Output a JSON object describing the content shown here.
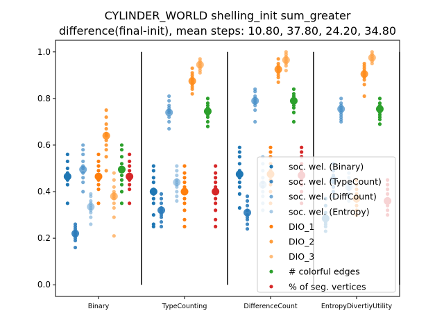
{
  "chart_data": {
    "type": "scatter",
    "title": "CYLINDER_WORLD shelling_init sum_greater",
    "subtitle": "difference(final-init), mean steps: 10.80, 37.80, 24.20, 34.80",
    "xlabel": "",
    "ylabel": "",
    "ylim": [
      -0.05,
      1.05
    ],
    "yticks": [
      "0.0",
      "0.2",
      "0.4",
      "0.6",
      "0.8",
      "1.0"
    ],
    "categories": [
      "Binary",
      "TypeCounting",
      "DifferenceCount",
      "EntropyDivertiyUtility"
    ],
    "grid": false,
    "legend_position": "lower-right",
    "separator_lines": {
      "x_positions": [
        0.5,
        1.5,
        2.5,
        3.5
      ],
      "y_range": [
        0.0,
        1.0
      ]
    },
    "series": [
      {
        "name": "soc. wel. (Binary)",
        "color": "#1f77b4",
        "alpha": 1.0,
        "means": [
          0.465,
          0.4,
          0.475,
          0.285
        ],
        "points": [
          [
            0.56,
            0.53,
            0.5,
            0.48,
            0.47,
            0.46,
            0.45,
            0.43,
            0.35
          ],
          [
            0.51,
            0.49,
            0.46,
            0.44,
            0.41,
            0.39,
            0.37,
            0.35,
            0.3,
            0.26,
            0.25
          ],
          [
            0.59,
            0.57,
            0.55,
            0.52,
            0.49,
            0.46,
            0.44,
            0.42,
            0.39,
            0.33
          ],
          [
            0.37,
            0.34,
            0.31,
            0.29,
            0.27,
            0.26,
            0.25,
            0.23
          ]
        ]
      },
      {
        "name": "soc. wel. (TypeCount)",
        "color": "#2b7bba",
        "alpha": 0.9,
        "means": [
          0.22,
          0.32,
          0.31,
          0.45
        ],
        "points": [
          [
            0.26,
            0.25,
            0.24,
            0.23,
            0.22,
            0.21,
            0.2,
            0.19,
            0.16
          ],
          [
            0.39,
            0.37,
            0.35,
            0.33,
            0.32,
            0.31,
            0.3,
            0.29,
            0.27,
            0.25
          ],
          [
            0.38,
            0.36,
            0.34,
            0.32,
            0.3,
            0.29,
            0.28,
            0.26,
            0.24
          ],
          [
            0.52,
            0.49,
            0.47,
            0.45,
            0.44,
            0.42,
            0.4,
            0.38
          ]
        ]
      },
      {
        "name": "soc. wel. (DiffCount)",
        "color": "#4a90c8",
        "alpha": 0.75,
        "means": [
          0.495,
          0.74,
          0.79,
          0.755
        ],
        "points": [
          [
            0.6,
            0.58,
            0.56,
            0.53,
            0.51,
            0.5,
            0.48,
            0.46,
            0.44,
            0.4
          ],
          [
            0.81,
            0.79,
            0.77,
            0.76,
            0.75,
            0.74,
            0.72,
            0.7,
            0.67
          ],
          [
            0.84,
            0.83,
            0.81,
            0.8,
            0.79,
            0.78,
            0.77,
            0.75,
            0.7
          ],
          [
            0.8,
            0.78,
            0.77,
            0.76,
            0.75,
            0.74,
            0.73,
            0.72,
            0.71,
            0.7
          ]
        ]
      },
      {
        "name": "soc. wel. (Entropy)",
        "color": "#6fa8d6",
        "alpha": 0.6,
        "means": [
          0.335,
          0.44,
          0.43,
          0.42
        ],
        "points": [
          [
            0.39,
            0.38,
            0.36,
            0.35,
            0.34,
            0.33,
            0.32,
            0.31,
            0.29,
            0.26
          ],
          [
            0.51,
            0.49,
            0.47,
            0.45,
            0.44,
            0.43,
            0.42,
            0.4,
            0.38,
            0.36
          ],
          [
            0.55,
            0.52,
            0.49,
            0.46,
            0.44,
            0.42,
            0.4,
            0.38,
            0.35,
            0.32
          ],
          [
            0.48,
            0.46,
            0.44,
            0.43,
            0.42,
            0.41,
            0.39,
            0.38,
            0.36
          ]
        ]
      },
      {
        "name": "DIO_1",
        "color": "#ff7f0e",
        "alpha": 1.0,
        "means": [
          0.465,
          0.4,
          0.475,
          0.37
        ],
        "points": [
          [
            0.56,
            0.53,
            0.51,
            0.49,
            0.47,
            0.46,
            0.45,
            0.43,
            0.41,
            0.35
          ],
          [
            0.51,
            0.48,
            0.46,
            0.44,
            0.42,
            0.4,
            0.37,
            0.35,
            0.32,
            0.28,
            0.25
          ],
          [
            0.59,
            0.57,
            0.55,
            0.52,
            0.49,
            0.47,
            0.45,
            0.43,
            0.4,
            0.35
          ],
          [
            0.45,
            0.43,
            0.41,
            0.39,
            0.37,
            0.36,
            0.34,
            0.32,
            0.3
          ]
        ]
      },
      {
        "name": "DIO_2",
        "color": "#ff8c1a",
        "alpha": 0.85,
        "means": [
          0.64,
          0.875,
          0.925,
          0.905
        ],
        "points": [
          [
            0.75,
            0.72,
            0.69,
            0.67,
            0.65,
            0.64,
            0.62,
            0.6,
            0.58,
            0.55,
            0.49
          ],
          [
            0.93,
            0.91,
            0.9,
            0.89,
            0.88,
            0.87,
            0.86,
            0.85,
            0.84,
            0.82
          ],
          [
            0.97,
            0.95,
            0.94,
            0.93,
            0.92,
            0.91,
            0.9,
            0.89,
            0.87
          ],
          [
            0.95,
            0.94,
            0.93,
            0.92,
            0.91,
            0.9,
            0.89,
            0.88,
            0.86,
            0.81
          ]
        ]
      },
      {
        "name": "DIO_3",
        "color": "#ffa040",
        "alpha": 0.7,
        "means": [
          0.38,
          0.945,
          0.965,
          0.975
        ],
        "points": [
          [
            0.48,
            0.45,
            0.42,
            0.4,
            0.39,
            0.38,
            0.37,
            0.35,
            0.33,
            0.29,
            0.21
          ],
          [
            0.97,
            0.96,
            0.95,
            0.94,
            0.93,
            0.92,
            0.91
          ],
          [
            1.0,
            0.99,
            0.98,
            0.97,
            0.96,
            0.95,
            0.94,
            0.92
          ],
          [
            1.0,
            0.99,
            0.98,
            0.97,
            0.96,
            0.95
          ]
        ]
      },
      {
        "name": "# colorful edges",
        "color": "#2ca02c",
        "alpha": 1.0,
        "means": [
          0.495,
          0.745,
          0.79,
          0.755
        ],
        "points": [
          [
            0.6,
            0.58,
            0.55,
            0.52,
            0.5,
            0.49,
            0.47,
            0.45,
            0.43,
            0.4,
            0.35
          ],
          [
            0.8,
            0.78,
            0.77,
            0.76,
            0.75,
            0.74,
            0.73,
            0.72,
            0.7,
            0.68
          ],
          [
            0.84,
            0.82,
            0.81,
            0.8,
            0.79,
            0.78,
            0.77,
            0.76,
            0.74,
            0.7
          ],
          [
            0.8,
            0.78,
            0.77,
            0.76,
            0.75,
            0.74,
            0.73,
            0.72,
            0.71,
            0.69
          ]
        ]
      },
      {
        "name": "% of seg. vertices",
        "color": "#d62728",
        "alpha": 1.0,
        "means": [
          0.465,
          0.4,
          0.47,
          0.36
        ],
        "points": [
          [
            0.56,
            0.53,
            0.51,
            0.49,
            0.47,
            0.46,
            0.45,
            0.43,
            0.41,
            0.35
          ],
          [
            0.51,
            0.48,
            0.46,
            0.44,
            0.42,
            0.4,
            0.37,
            0.35,
            0.32,
            0.28,
            0.25
          ],
          [
            0.59,
            0.57,
            0.55,
            0.52,
            0.49,
            0.47,
            0.45,
            0.43,
            0.4,
            0.35
          ],
          [
            0.45,
            0.43,
            0.41,
            0.39,
            0.37,
            0.36,
            0.34,
            0.32,
            0.3
          ]
        ]
      }
    ]
  }
}
